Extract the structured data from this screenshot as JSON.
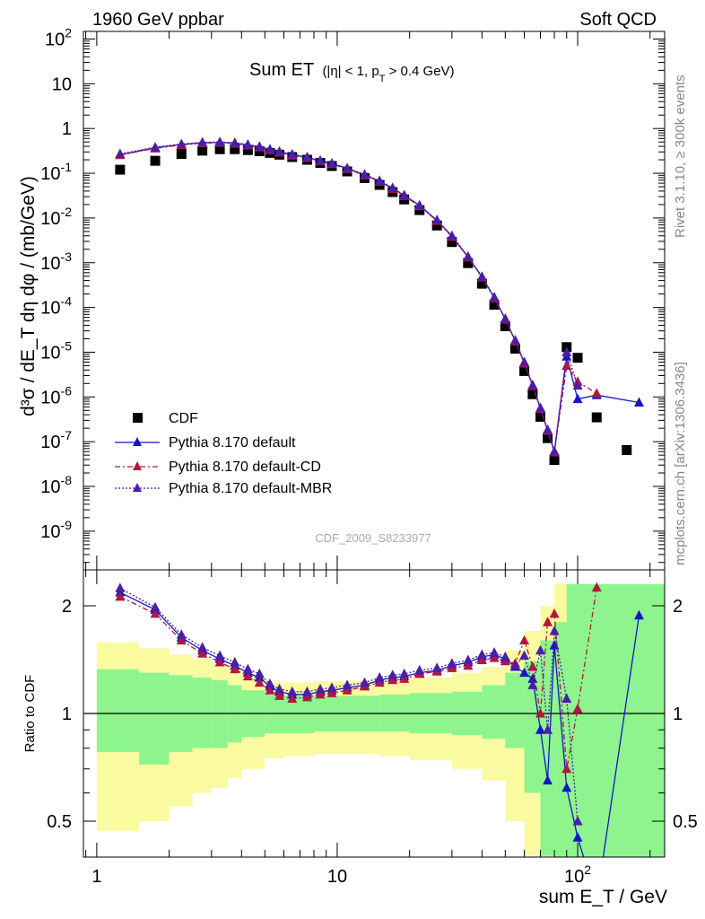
{
  "header": {
    "left": "1960 GeV ppbar",
    "right": "Soft QCD"
  },
  "side_labels": {
    "rivet": "Rivet 3.1.10, ≥ 300k events",
    "source": "mcplots.cern.ch [arXiv:1306.3436]"
  },
  "watermark": "CDF_2009_S8233977",
  "colors": {
    "cdf": "#000000",
    "default": "#1515c8",
    "default_cd": "#b0183e",
    "default_mbr": "#4a1ea8",
    "band_inner": "#8ef58e",
    "band_outer": "#fafaa0"
  },
  "chart_data": [
    {
      "type": "scatter",
      "title": "Sum ET (|η| < 1, pT > 0.4 GeV)",
      "title_parts": {
        "main": "Sum ET",
        "cut_a": "(|η| < 1, p",
        "cut_sub": "T",
        "cut_b": " > 0.4 GeV)"
      },
      "ylabel": "d³σ / dE_T dη dφ / (mb/GeV)",
      "xlabel": "sum E_T / GeV",
      "xscale": "log",
      "yscale": "log",
      "xlim": [
        0.88,
        230
      ],
      "ylim": [
        2e-10,
        200
      ],
      "y_tick_labels": [
        "10^2",
        "10",
        "1",
        "10^-1",
        "10^-2",
        "10^-3",
        "10^-4",
        "10^-5",
        "10^-6",
        "10^-7",
        "10^-8",
        "10^-9"
      ],
      "legend": {
        "placement": "bottom-left",
        "entries": [
          "CDF",
          "Pythia 8.170 default",
          "Pythia 8.170 default-CD",
          "Pythia 8.170 default-MBR"
        ]
      },
      "series": [
        {
          "name": "CDF",
          "marker": "square",
          "x": [
            1.25,
            1.75,
            2.25,
            2.75,
            3.25,
            3.75,
            4.25,
            4.75,
            5.25,
            5.75,
            6.5,
            7.5,
            8.5,
            9.5,
            11,
            13,
            15,
            17,
            19,
            22,
            26,
            30,
            35,
            40,
            45,
            50,
            55,
            60,
            65,
            70,
            75,
            80,
            90,
            100,
            120,
            160
          ],
          "y": [
            0.12,
            0.19,
            0.27,
            0.32,
            0.345,
            0.345,
            0.33,
            0.31,
            0.285,
            0.26,
            0.23,
            0.2,
            0.17,
            0.145,
            0.11,
            0.078,
            0.055,
            0.038,
            0.026,
            0.015,
            0.0068,
            0.0029,
            0.00098,
            0.00034,
            0.000115,
            3.8e-05,
            1.2e-05,
            3.8e-06,
            1.15e-06,
            3.6e-07,
            1.2e-07,
            3.9e-08,
            1.3e-05,
            7.5e-06,
            3.5e-07,
            6.5e-08
          ]
        },
        {
          "name": "Pythia 8.170 default",
          "marker": "triangle",
          "line": "solid",
          "x": [
            1.25,
            1.75,
            2.25,
            2.75,
            3.25,
            3.75,
            4.25,
            4.75,
            5.25,
            5.75,
            6.5,
            7.5,
            8.5,
            9.5,
            11,
            13,
            15,
            17,
            19,
            22,
            26,
            30,
            35,
            40,
            45,
            50,
            55,
            60,
            65,
            70,
            75,
            80,
            90,
            100,
            120,
            180
          ],
          "y": [
            0.26,
            0.37,
            0.44,
            0.48,
            0.49,
            0.47,
            0.43,
            0.39,
            0.34,
            0.3,
            0.26,
            0.225,
            0.19,
            0.165,
            0.128,
            0.092,
            0.066,
            0.046,
            0.032,
            0.019,
            0.0088,
            0.0039,
            0.00135,
            0.00048,
            0.000165,
            5.5e-05,
            1.8e-05,
            5.8e-06,
            1.8e-06,
            5.5e-07,
            1.8e-07,
            6e-08,
            8e-06,
            9e-07,
            1.1e-06,
            7.5e-07
          ]
        },
        {
          "name": "Pythia 8.170 default-CD",
          "marker": "triangle",
          "line": "dashed",
          "x": [
            1.25,
            1.75,
            2.25,
            2.75,
            3.25,
            3.75,
            4.25,
            4.75,
            5.25,
            5.75,
            6.5,
            7.5,
            8.5,
            9.5,
            11,
            13,
            15,
            17,
            19,
            22,
            26,
            30,
            35,
            40,
            45,
            50,
            55,
            60,
            65,
            70,
            75,
            80,
            90,
            100,
            120
          ],
          "y": [
            0.255,
            0.36,
            0.43,
            0.47,
            0.48,
            0.46,
            0.42,
            0.38,
            0.33,
            0.29,
            0.25,
            0.22,
            0.185,
            0.16,
            0.124,
            0.09,
            0.065,
            0.045,
            0.031,
            0.0185,
            0.0086,
            0.0038,
            0.00132,
            0.00047,
            0.00016,
            5.4e-05,
            1.75e-05,
            5.6e-06,
            1.75e-06,
            5.4e-07,
            1.75e-07,
            5.8e-08,
            5e-06,
            2.2e-06,
            1.2e-06
          ]
        },
        {
          "name": "Pythia 8.170 default-MBR",
          "marker": "triangle",
          "line": "dotted",
          "x": [
            1.25,
            1.75,
            2.25,
            2.75,
            3.25,
            3.75,
            4.25,
            4.75,
            5.25,
            5.75,
            6.5,
            7.5,
            8.5,
            9.5,
            11,
            13,
            15,
            17,
            19,
            22,
            26,
            30,
            35,
            40,
            45,
            50,
            55,
            60,
            65,
            70,
            75,
            80,
            90,
            100
          ],
          "y": [
            0.27,
            0.38,
            0.45,
            0.49,
            0.5,
            0.48,
            0.44,
            0.395,
            0.345,
            0.305,
            0.265,
            0.23,
            0.193,
            0.167,
            0.13,
            0.094,
            0.068,
            0.047,
            0.0325,
            0.0192,
            0.009,
            0.004,
            0.00138,
            0.00049,
            0.00017,
            5.6e-05,
            1.85e-05,
            6e-06,
            1.85e-06,
            5.7e-07,
            1.85e-07,
            6.1e-08,
            1e-05,
            1.8e-06
          ]
        }
      ]
    },
    {
      "type": "line",
      "ylabel": "Ratio to CDF",
      "xscale": "log",
      "yscale": "log",
      "xlim": [
        0.88,
        230
      ],
      "ylim": [
        0.42,
        2.3
      ],
      "y_tick_labels": [
        "2",
        "1",
        "0.5"
      ],
      "x_tick_labels": [
        "1",
        "10",
        "10^2"
      ],
      "reference_line": 1,
      "bands": {
        "edges": [
          1,
          1.5,
          2,
          2.5,
          3,
          3.5,
          4,
          5,
          6,
          8,
          10,
          15,
          20,
          30,
          40,
          50,
          60,
          70,
          80,
          90,
          100,
          230
        ],
        "inner_lo": [
          0.78,
          0.72,
          0.78,
          0.8,
          0.8,
          0.83,
          0.86,
          0.88,
          0.88,
          0.89,
          0.89,
          0.89,
          0.88,
          0.87,
          0.85,
          0.8,
          0.6,
          0.4,
          0.35,
          0.3,
          0.3
        ],
        "inner_hi": [
          1.33,
          1.3,
          1.28,
          1.26,
          1.24,
          1.2,
          1.16,
          1.13,
          1.12,
          1.12,
          1.12,
          1.13,
          1.14,
          1.15,
          1.2,
          1.3,
          1.4,
          1.6,
          1.8,
          2.3,
          2.3
        ],
        "outer_lo": [
          0.47,
          0.5,
          0.55,
          0.6,
          0.62,
          0.66,
          0.7,
          0.75,
          0.76,
          0.77,
          0.77,
          0.76,
          0.74,
          0.7,
          0.65,
          0.5,
          0.4,
          0.35,
          0.3,
          0.3,
          0.3
        ],
        "outer_hi": [
          1.58,
          1.52,
          1.46,
          1.42,
          1.38,
          1.34,
          1.28,
          1.22,
          1.22,
          1.23,
          1.23,
          1.24,
          1.26,
          1.3,
          1.35,
          1.5,
          1.7,
          2,
          2.3,
          2.3,
          2.3
        ]
      },
      "series": [
        {
          "name": "Pythia 8.170 default",
          "x": [
            1.25,
            1.75,
            2.25,
            2.75,
            3.25,
            3.75,
            4.25,
            4.75,
            5.25,
            5.75,
            6.5,
            7.5,
            8.5,
            9.5,
            11,
            13,
            15,
            17,
            19,
            22,
            26,
            30,
            35,
            40,
            45,
            50,
            55,
            60,
            65,
            70,
            75,
            80,
            90,
            100,
            120,
            180
          ],
          "y": [
            2.18,
            1.95,
            1.63,
            1.5,
            1.42,
            1.36,
            1.3,
            1.26,
            1.19,
            1.15,
            1.13,
            1.13,
            1.15,
            1.16,
            1.18,
            1.2,
            1.24,
            1.26,
            1.27,
            1.3,
            1.32,
            1.36,
            1.39,
            1.44,
            1.46,
            1.42,
            1.35,
            1.3,
            1.25,
            0.9,
            0.65,
            1.55,
            0.62,
            0.45,
            0.3,
            1.88
          ]
        },
        {
          "name": "Pythia 8.170 default-CD",
          "x": [
            1.25,
            1.75,
            2.25,
            2.75,
            3.25,
            3.75,
            4.25,
            4.75,
            5.25,
            5.75,
            6.5,
            7.5,
            8.5,
            9.5,
            11,
            13,
            15,
            17,
            19,
            22,
            26,
            30,
            35,
            40,
            45,
            50,
            55,
            60,
            65,
            70,
            75,
            80,
            90,
            100,
            120
          ],
          "y": [
            2.12,
            1.9,
            1.6,
            1.47,
            1.39,
            1.33,
            1.27,
            1.22,
            1.16,
            1.12,
            1.1,
            1.11,
            1.13,
            1.14,
            1.16,
            1.19,
            1.22,
            1.24,
            1.25,
            1.29,
            1.31,
            1.34,
            1.36,
            1.41,
            1.43,
            1.4,
            1.38,
            1.6,
            1.35,
            1.0,
            1.8,
            1.9,
            0.7,
            1.03,
            2.25
          ]
        },
        {
          "name": "Pythia 8.170 default-MBR",
          "x": [
            1.25,
            1.75,
            2.25,
            2.75,
            3.25,
            3.75,
            4.25,
            4.75,
            5.25,
            5.75,
            6.5,
            7.5,
            8.5,
            9.5,
            11,
            13,
            15,
            17,
            19,
            22,
            26,
            30,
            35,
            40,
            45,
            50,
            55,
            60,
            65,
            70,
            75,
            80,
            90,
            100
          ],
          "y": [
            2.24,
            1.98,
            1.66,
            1.53,
            1.45,
            1.39,
            1.33,
            1.29,
            1.21,
            1.17,
            1.15,
            1.15,
            1.17,
            1.18,
            1.2,
            1.22,
            1.26,
            1.28,
            1.29,
            1.32,
            1.34,
            1.38,
            1.41,
            1.46,
            1.48,
            1.44,
            1.36,
            1.45,
            1.2,
            1.5,
            0.9,
            1.7,
            1.1,
            0.5
          ]
        }
      ]
    }
  ]
}
